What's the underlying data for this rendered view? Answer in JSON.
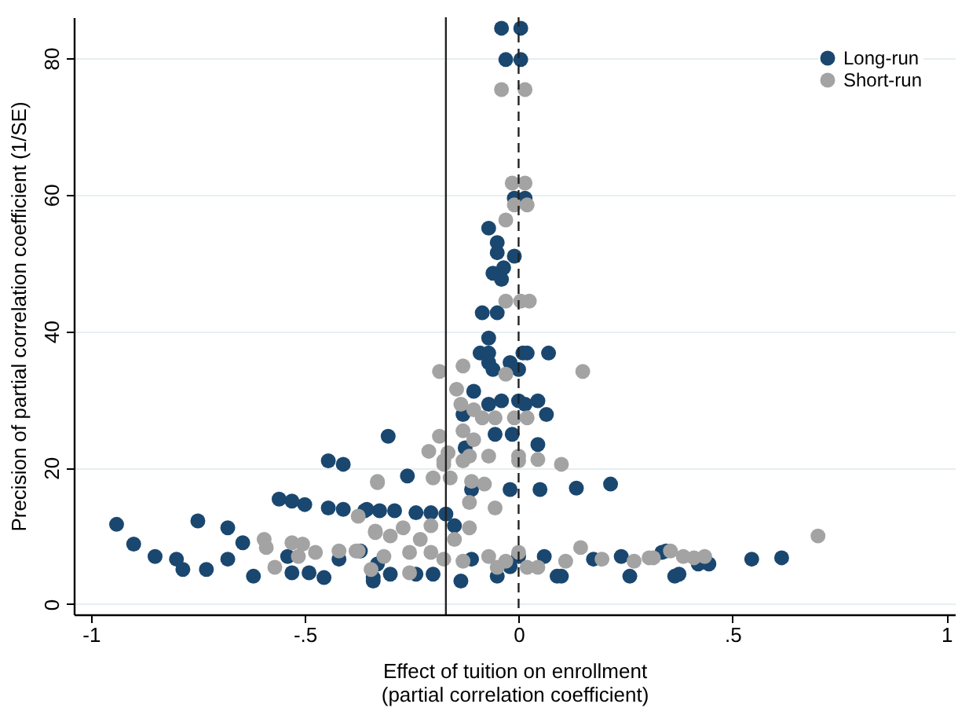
{
  "chart_data": {
    "type": "scatter",
    "xlabel": "Effect of tuition on enrollment\n(partial correlation coefficient)",
    "ylabel": "Precision of partial correlation coefficient (1/SE)",
    "xlim": [
      -1.04,
      1.02
    ],
    "ylim": [
      -1.5,
      86
    ],
    "xticks": [
      -1,
      {
        "value": -0.5,
        "label": "-.5"
      },
      0,
      {
        "value": 0.5,
        "label": ".5"
      },
      1
    ],
    "yticks": [
      0,
      20,
      40,
      60,
      80
    ],
    "grid": "y",
    "legend": "top right",
    "marker": "circle",
    "ref_lines": [
      {
        "axis": "x",
        "value": -0.17,
        "line_style": "solid"
      },
      {
        "axis": "x",
        "value": 0,
        "line_style": "dashed"
      }
    ],
    "series": [
      {
        "name": "Long-run",
        "color": "#1a476f",
        "x": [
          -0.94,
          -0.75,
          -0.68,
          -0.9,
          -0.85,
          -0.8,
          -0.785,
          -0.73,
          -0.68,
          -0.645,
          -0.62,
          -0.56,
          -0.53,
          -0.5,
          -0.445,
          -0.41,
          -0.445,
          -0.41,
          -0.36,
          -0.325,
          -0.54,
          -0.53,
          -0.49,
          -0.455,
          -0.42,
          -0.37,
          -0.33,
          -0.34,
          -0.26,
          -0.355,
          -0.29,
          -0.24,
          -0.205,
          -0.17,
          -0.15,
          -0.11,
          -0.02,
          0.05,
          0.135,
          0.215,
          -0.34,
          -0.3,
          -0.24,
          -0.2,
          -0.135,
          -0.11,
          -0.05,
          0.06,
          0.09,
          0.1,
          0.175,
          0.24,
          0.26,
          0.345,
          0.365,
          0.335,
          0.375,
          0.42,
          0.445,
          0.545,
          0.615,
          -0.05,
          -0.05,
          -0.01,
          -0.035,
          -0.06,
          -0.04,
          -0.085,
          -0.05,
          -0.07,
          -0.09,
          -0.07,
          -0.07,
          -0.06,
          -0.02,
          0,
          0.01,
          0.02,
          0.07,
          -0.105,
          -0.07,
          -0.04,
          0,
          0.015,
          0.045,
          -0.13,
          0.065,
          -0.055,
          -0.015,
          0.045,
          -0.125,
          -0.305,
          -0.04,
          0.005,
          -0.03,
          0.005,
          -0.01,
          0.015,
          -0.07,
          0,
          -0.02
        ],
        "values": [
          11.7,
          12.2,
          11.2,
          8.8,
          7,
          6.6,
          5.1,
          5.1,
          6.6,
          9,
          4.1,
          15.4,
          15.1,
          14.6,
          21,
          20.5,
          14.1,
          13.9,
          13.7,
          13.7,
          7,
          4.6,
          4.6,
          3.9,
          6.6,
          7.8,
          5.9,
          3.9,
          18.8,
          13.9,
          13.7,
          13.4,
          13.4,
          13.2,
          11.5,
          16.8,
          16.8,
          16.8,
          17,
          17.6,
          3.4,
          4.4,
          4.4,
          4.4,
          3.4,
          6.6,
          4.1,
          7,
          4.1,
          4.1,
          6.6,
          7,
          4.1,
          7.8,
          4.1,
          7.6,
          4.4,
          5.9,
          5.9,
          6.6,
          6.8,
          53,
          51.5,
          51,
          49.3,
          48.5,
          47.6,
          42.7,
          42.7,
          39,
          36.8,
          36.8,
          35.4,
          34.4,
          35.4,
          34.4,
          36.8,
          36.8,
          36.8,
          31.2,
          29.3,
          29.8,
          29.8,
          29.3,
          29.8,
          27.8,
          27.8,
          24.9,
          24.9,
          23.4,
          22.9,
          24.6,
          84.4,
          84.4,
          79.8,
          79.8,
          59.5,
          59.5,
          55.1,
          7,
          5.5
        ]
      },
      {
        "name": "Short-run",
        "color": "#a3a3a3",
        "x": [
          -0.04,
          0.015,
          -0.015,
          0.015,
          -0.01,
          0.02,
          -0.03,
          -0.03,
          0.005,
          0.025,
          -0.185,
          -0.13,
          -0.03,
          0.15,
          -0.145,
          -0.135,
          -0.105,
          -0.085,
          -0.055,
          -0.01,
          0.02,
          -0.13,
          -0.105,
          -0.185,
          -0.21,
          -0.165,
          -0.115,
          -0.07,
          0,
          0.045,
          0.1,
          -0.175,
          -0.175,
          -0.13,
          0,
          -0.33,
          -0.2,
          -0.16,
          -0.11,
          -0.08,
          -0.115,
          -0.055,
          -0.335,
          -0.3,
          -0.27,
          -0.23,
          -0.205,
          -0.115,
          -0.15,
          -0.38,
          -0.315,
          -0.255,
          -0.205,
          -0.175,
          -0.13,
          -0.07,
          -0.03,
          0,
          0.02,
          -0.255,
          -0.05,
          0.045,
          0.11,
          0.145,
          0.195,
          0.27,
          0.305,
          0.315,
          0.355,
          0.385,
          0.41,
          0.435,
          0.7,
          -0.33,
          -0.375,
          -0.335,
          -0.595,
          -0.59,
          -0.53,
          -0.515,
          -0.475,
          -0.42,
          -0.375,
          -0.57,
          -0.345,
          -0.505
        ],
        "values": [
          75.4,
          75.4,
          61.7,
          61.7,
          58.5,
          58.5,
          56.3,
          44.4,
          44.4,
          44.4,
          34.1,
          34.9,
          33.7,
          34.1,
          31.5,
          29.3,
          28.5,
          27.3,
          27.3,
          27.3,
          27.3,
          25.4,
          24.1,
          24.6,
          22.4,
          22.2,
          21.7,
          21.7,
          21.7,
          21.2,
          20.5,
          20.5,
          21,
          21,
          21,
          18,
          18.5,
          18.5,
          18,
          17.6,
          14.9,
          14.1,
          10.7,
          10,
          11.2,
          9.5,
          11.5,
          11.2,
          9.5,
          7.8,
          7,
          7.6,
          7.6,
          6.6,
          6.3,
          7,
          6.3,
          7.6,
          5.4,
          4.6,
          5.4,
          5.4,
          6.3,
          8.3,
          6.6,
          6.3,
          6.8,
          6.8,
          7.8,
          7,
          6.8,
          7,
          10,
          17.8,
          12.9,
          10.5,
          9.5,
          8.3,
          9,
          7,
          7.6,
          7.8,
          7.8,
          5.4,
          5.1,
          8.8
        ]
      }
    ]
  }
}
